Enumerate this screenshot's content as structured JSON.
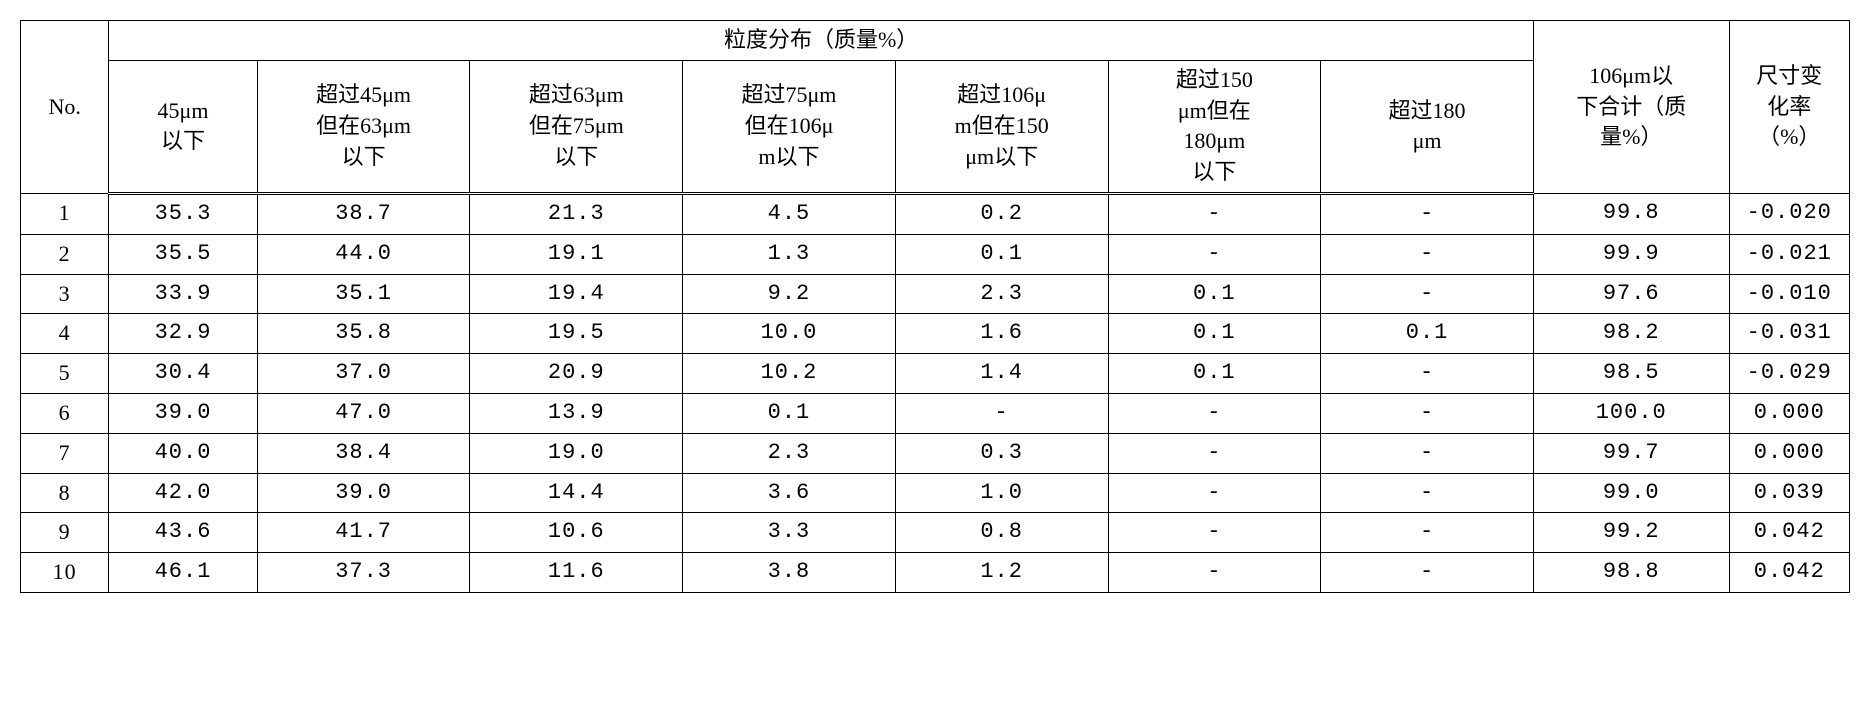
{
  "header": {
    "group": "粒度分布（质量%）",
    "no": "No.",
    "cols": [
      "45μm\n以下",
      "超过45μm\n但在63μm\n以下",
      "超过63μm\n但在75μm\n以下",
      "超过75μm\n但在106μ\nm以下",
      "超过106μ\nm但在150\nμm以下",
      "超过150\nμm但在\n180μm\n以下",
      "超过180\nμm"
    ],
    "total": "106μm以\n下合计（质\n量%）",
    "dim": "尺寸变\n化率\n（%）"
  },
  "rows": [
    {
      "no": "1",
      "d": [
        "35.3",
        "38.7",
        "21.3",
        "4.5",
        "0.2",
        "-",
        "-"
      ],
      "total": "99.8",
      "dim": "-0.020"
    },
    {
      "no": "2",
      "d": [
        "35.5",
        "44.0",
        "19.1",
        "1.3",
        "0.1",
        "-",
        "-"
      ],
      "total": "99.9",
      "dim": "-0.021"
    },
    {
      "no": "3",
      "d": [
        "33.9",
        "35.1",
        "19.4",
        "9.2",
        "2.3",
        "0.1",
        "-"
      ],
      "total": "97.6",
      "dim": "-0.010"
    },
    {
      "no": "4",
      "d": [
        "32.9",
        "35.8",
        "19.5",
        "10.0",
        "1.6",
        "0.1",
        "0.1"
      ],
      "total": "98.2",
      "dim": "-0.031"
    },
    {
      "no": "5",
      "d": [
        "30.4",
        "37.0",
        "20.9",
        "10.2",
        "1.4",
        "0.1",
        "-"
      ],
      "total": "98.5",
      "dim": "-0.029"
    },
    {
      "no": "6",
      "d": [
        "39.0",
        "47.0",
        "13.9",
        "0.1",
        "-",
        "-",
        "-"
      ],
      "total": "100.0",
      "dim": "0.000"
    },
    {
      "no": "7",
      "d": [
        "40.0",
        "38.4",
        "19.0",
        "2.3",
        "0.3",
        "-",
        "-"
      ],
      "total": "99.7",
      "dim": "0.000"
    },
    {
      "no": "8",
      "d": [
        "42.0",
        "39.0",
        "14.4",
        "3.6",
        "1.0",
        "-",
        "-"
      ],
      "total": "99.0",
      "dim": "0.039"
    },
    {
      "no": "9",
      "d": [
        "43.6",
        "41.7",
        "10.6",
        "3.3",
        "0.8",
        "-",
        "-"
      ],
      "total": "99.2",
      "dim": "0.042"
    },
    {
      "no": "10",
      "d": [
        "46.1",
        "37.3",
        "11.6",
        "3.8",
        "1.2",
        "-",
        "-"
      ],
      "total": "98.8",
      "dim": "0.042"
    }
  ]
}
